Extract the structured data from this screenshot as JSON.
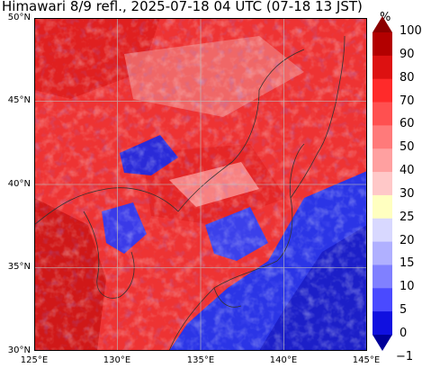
{
  "title": "Himawari 8/9 refl., 2025-07-18 04 UTC (07-18 13 JST)",
  "map": {
    "lat_labels": [
      "50°N",
      "45°N",
      "40°N",
      "35°N",
      "30°N"
    ],
    "lon_labels": [
      "125°E",
      "130°E",
      "135°E",
      "140°E",
      "145°E"
    ]
  },
  "colorbar": {
    "unit": "%",
    "ticks": [
      "100",
      "90",
      "80",
      "70",
      "60",
      "50",
      "40",
      "30",
      "25",
      "20",
      "15",
      "10",
      "5",
      "0",
      "−1"
    ],
    "colors": [
      "#8b0000",
      "#b30000",
      "#dd1111",
      "#ff2a2a",
      "#ff5050",
      "#ff7a7a",
      "#ffa0a0",
      "#ffc8c8",
      "#ffffc0",
      "#d8d8ff",
      "#b0b0ff",
      "#8080ff",
      "#4a4aff",
      "#1010e0",
      "#000099"
    ]
  }
}
